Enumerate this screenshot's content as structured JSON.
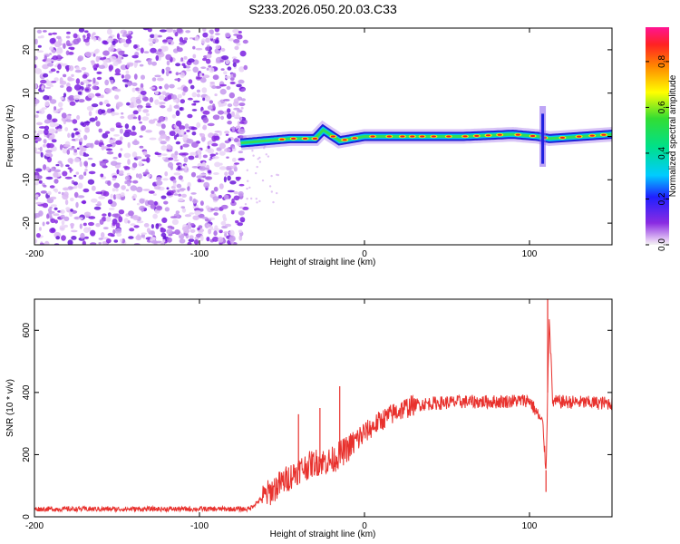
{
  "title": "S233.2026.050.20.03.C33",
  "chart_data": [
    {
      "type": "heatmap",
      "title": "S233.2026.050.20.03.C33",
      "xlabel": "Height of straight line (km)",
      "ylabel": "Frequency (Hz)",
      "xlim": [
        -200,
        150
      ],
      "ylim": [
        -25,
        25
      ],
      "x_ticks": [
        -200,
        -100,
        0,
        100
      ],
      "y_ticks": [
        -20,
        -10,
        0,
        10,
        20
      ],
      "colorbar": {
        "label": "Normalized spectral amplitude",
        "range": [
          0,
          0.95
        ],
        "ticks": [
          0.0,
          0.2,
          0.4,
          0.6,
          0.8
        ]
      },
      "noise_region_km": [
        -200,
        -72
      ],
      "signal_line": {
        "x_km": [
          -75,
          -60,
          -45,
          -30,
          -25,
          -15,
          0,
          30,
          60,
          90,
          105,
          112,
          150
        ],
        "freq_hz": [
          -1.5,
          -1,
          -0.5,
          -0.5,
          1.5,
          -1,
          0,
          0,
          0,
          0.5,
          0,
          -0.5,
          0.5
        ]
      },
      "spike_km": 108,
      "spike_freq_range_hz": [
        -7,
        7
      ]
    },
    {
      "type": "line",
      "xlabel": "Height of straight line (km)",
      "ylabel": "SNR (10 * v/v)",
      "xlim": [
        -200,
        150
      ],
      "ylim": [
        0,
        700
      ],
      "x_ticks": [
        -200,
        -100,
        0,
        100
      ],
      "y_ticks": [
        0,
        200,
        400,
        600
      ],
      "color": "#e8312d",
      "series": [
        {
          "name": "SNR",
          "x_km": [
            -200,
            -150,
            -100,
            -70,
            -62,
            -50,
            -40,
            -30,
            -20,
            -10,
            0,
            10,
            20,
            30,
            40,
            60,
            80,
            100,
            108,
            110,
            112,
            114,
            120,
            150
          ],
          "snr": [
            25,
            25,
            25,
            25,
            60,
            110,
            150,
            175,
            180,
            220,
            270,
            310,
            340,
            360,
            365,
            370,
            370,
            375,
            300,
            150,
            650,
            370,
            370,
            365
          ]
        }
      ],
      "spikes": [
        {
          "x_km": -40,
          "snr": 330
        },
        {
          "x_km": -27,
          "snr": 350
        },
        {
          "x_km": -15,
          "snr": 420
        },
        {
          "x_km": 111,
          "snr": 700
        },
        {
          "x_km": 110,
          "snr": 80
        }
      ]
    }
  ]
}
